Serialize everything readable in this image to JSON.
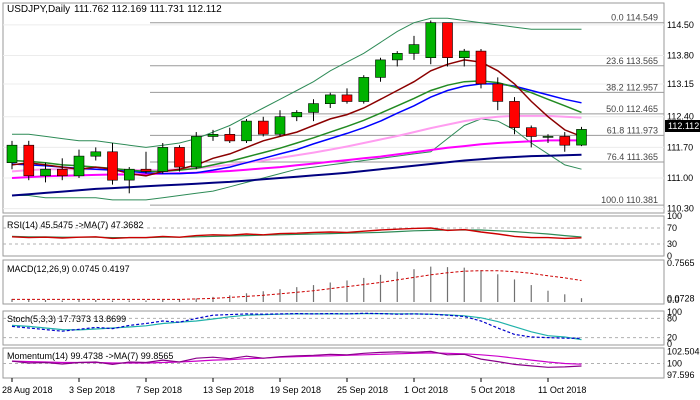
{
  "chart_data": {
    "type": "candlestick",
    "title": "USDJPY,Daily",
    "ohlc_text": "111.762 112.169 111.731 112.112",
    "x_labels": [
      "28 Aug 2018",
      "3 Sep 2018",
      "7 Sep 2018",
      "13 Sep 2018",
      "19 Sep 2018",
      "25 Sep 2018",
      "1 Oct 2018",
      "5 Oct 2018",
      "11 Oct 2018"
    ],
    "x_label_index": [
      0,
      4,
      8,
      12,
      16,
      20,
      24,
      28,
      32
    ],
    "main": {
      "ylim": [
        110.2,
        115.0
      ],
      "y_ticks": [
        "114.50",
        "113.80",
        "113.15",
        "112.40",
        "111.70",
        "111.00",
        "110.30"
      ],
      "current_price": "112.112",
      "candles": [
        {
          "o": 111.35,
          "h": 111.85,
          "l": 111.2,
          "c": 111.75
        },
        {
          "o": 111.75,
          "h": 111.85,
          "l": 110.95,
          "c": 111.05
        },
        {
          "o": 111.05,
          "h": 111.35,
          "l": 110.9,
          "c": 111.2
        },
        {
          "o": 111.2,
          "h": 111.45,
          "l": 110.95,
          "c": 111.05
        },
        {
          "o": 111.05,
          "h": 111.65,
          "l": 111.0,
          "c": 111.5
        },
        {
          "o": 111.5,
          "h": 111.7,
          "l": 111.4,
          "c": 111.6
        },
        {
          "o": 111.6,
          "h": 111.8,
          "l": 110.85,
          "c": 110.95
        },
        {
          "o": 110.95,
          "h": 111.25,
          "l": 110.65,
          "c": 111.2
        },
        {
          "o": 111.2,
          "h": 111.6,
          "l": 111.1,
          "c": 111.15
        },
        {
          "o": 111.15,
          "h": 111.8,
          "l": 111.1,
          "c": 111.7
        },
        {
          "o": 111.7,
          "h": 111.75,
          "l": 111.15,
          "c": 111.25
        },
        {
          "o": 111.25,
          "h": 112.05,
          "l": 111.2,
          "c": 111.95
        },
        {
          "o": 111.95,
          "h": 112.1,
          "l": 111.85,
          "c": 112.0
        },
        {
          "o": 112.0,
          "h": 112.15,
          "l": 111.8,
          "c": 111.85
        },
        {
          "o": 111.85,
          "h": 112.35,
          "l": 111.8,
          "c": 112.3
        },
        {
          "o": 112.3,
          "h": 112.4,
          "l": 111.95,
          "c": 112.0
        },
        {
          "o": 112.0,
          "h": 112.55,
          "l": 111.95,
          "c": 112.4
        },
        {
          "o": 112.4,
          "h": 112.55,
          "l": 112.3,
          "c": 112.5
        },
        {
          "o": 112.5,
          "h": 112.8,
          "l": 112.3,
          "c": 112.7
        },
        {
          "o": 112.7,
          "h": 112.95,
          "l": 112.6,
          "c": 112.9
        },
        {
          "o": 112.9,
          "h": 113.05,
          "l": 112.7,
          "c": 112.75
        },
        {
          "o": 112.75,
          "h": 113.35,
          "l": 112.7,
          "c": 113.3
        },
        {
          "o": 113.3,
          "h": 113.75,
          "l": 113.2,
          "c": 113.7
        },
        {
          "o": 113.7,
          "h": 113.9,
          "l": 113.55,
          "c": 113.85
        },
        {
          "o": 113.85,
          "h": 114.25,
          "l": 113.7,
          "c": 114.05
        },
        {
          "o": 113.75,
          "h": 114.6,
          "l": 113.6,
          "c": 114.55
        },
        {
          "o": 114.55,
          "h": 114.55,
          "l": 113.55,
          "c": 113.75
        },
        {
          "o": 113.75,
          "h": 113.95,
          "l": 113.55,
          "c": 113.9
        },
        {
          "o": 113.9,
          "h": 113.95,
          "l": 113.05,
          "c": 113.15
        },
        {
          "o": 113.15,
          "h": 113.3,
          "l": 112.55,
          "c": 112.75
        },
        {
          "o": 112.75,
          "h": 112.85,
          "l": 112.0,
          "c": 112.15
        },
        {
          "o": 112.15,
          "h": 112.2,
          "l": 111.7,
          "c": 111.95
        },
        {
          "o": 111.95,
          "h": 112.0,
          "l": 111.8,
          "c": 111.95
        },
        {
          "o": 111.95,
          "h": 112.05,
          "l": 111.6,
          "c": 111.75
        },
        {
          "o": 111.75,
          "h": 112.17,
          "l": 111.73,
          "c": 112.11
        }
      ],
      "fib_levels": [
        {
          "label": "0.0 114.549",
          "price": 114.549
        },
        {
          "label": "23.6 113.565",
          "price": 113.565
        },
        {
          "label": "38.2 112.957",
          "price": 112.957
        },
        {
          "label": "50.0 112.465",
          "price": 112.465
        },
        {
          "label": "61.8 111.973",
          "price": 111.973
        },
        {
          "label": "76.4 111.365",
          "price": 111.365
        },
        {
          "label": "100.0 110.381",
          "price": 110.381
        }
      ],
      "moving_averages": [
        {
          "color": "#8b0000",
          "values": [
            111.3,
            111.35,
            111.3,
            111.25,
            111.2,
            111.25,
            111.2,
            111.1,
            111.05,
            111.15,
            111.2,
            111.3,
            111.45,
            111.55,
            111.7,
            111.85,
            111.95,
            112.05,
            112.2,
            112.35,
            112.45,
            112.6,
            112.8,
            113.0,
            113.2,
            113.45,
            113.6,
            113.7,
            113.65,
            113.45,
            113.15,
            112.75,
            112.4,
            112.1,
            111.95
          ]
        },
        {
          "color": "#228b22",
          "values": [
            111.4,
            111.38,
            111.35,
            111.3,
            111.28,
            111.25,
            111.22,
            111.18,
            111.15,
            111.15,
            111.18,
            111.22,
            111.3,
            111.38,
            111.48,
            111.58,
            111.68,
            111.8,
            111.92,
            112.05,
            112.18,
            112.32,
            112.48,
            112.65,
            112.82,
            113.0,
            113.12,
            113.2,
            113.22,
            113.18,
            113.08,
            112.95,
            112.8,
            112.65,
            112.5
          ]
        },
        {
          "color": "#0000ff",
          "values": [
            111.32,
            111.3,
            111.28,
            111.25,
            111.22,
            111.2,
            111.18,
            111.15,
            111.12,
            111.1,
            111.1,
            111.12,
            111.18,
            111.25,
            111.35,
            111.45,
            111.55,
            111.65,
            111.78,
            111.9,
            112.02,
            112.15,
            112.3,
            112.48,
            112.65,
            112.85,
            113.0,
            113.1,
            113.15,
            113.15,
            113.1,
            113.0,
            112.9,
            112.8,
            112.72
          ]
        },
        {
          "color": "#ff9df0",
          "values": [
            111.15,
            111.18,
            111.2,
            111.2,
            111.2,
            111.2,
            111.2,
            111.18,
            111.18,
            111.18,
            111.2,
            111.22,
            111.26,
            111.3,
            111.35,
            111.4,
            111.46,
            111.52,
            111.58,
            111.65,
            111.72,
            111.8,
            111.88,
            111.96,
            112.05,
            112.14,
            112.22,
            112.3,
            112.36,
            112.4,
            112.42,
            112.42,
            112.42,
            112.4,
            112.38
          ]
        },
        {
          "color": "#ff00ff",
          "values": [
            111.0,
            111.02,
            111.04,
            111.05,
            111.06,
            111.07,
            111.08,
            111.08,
            111.09,
            111.1,
            111.11,
            111.12,
            111.14,
            111.16,
            111.19,
            111.22,
            111.25,
            111.29,
            111.33,
            111.37,
            111.41,
            111.45,
            111.49,
            111.54,
            111.59,
            111.64,
            111.69,
            111.73,
            111.77,
            111.8,
            111.82,
            111.84,
            111.86,
            111.86,
            111.86
          ]
        },
        {
          "color": "#000080",
          "values": [
            110.6,
            110.63,
            110.66,
            110.69,
            110.72,
            110.75,
            110.77,
            110.79,
            110.81,
            110.83,
            110.85,
            110.87,
            110.89,
            110.91,
            110.94,
            110.97,
            111.0,
            111.03,
            111.06,
            111.09,
            111.12,
            111.16,
            111.2,
            111.24,
            111.28,
            111.32,
            111.36,
            111.4,
            111.43,
            111.46,
            111.48,
            111.5,
            111.51,
            111.52,
            111.53
          ]
        }
      ],
      "bollinger": {
        "color": "#2e8b57",
        "upper": [
          112.0,
          112.0,
          111.95,
          111.9,
          111.85,
          111.85,
          111.8,
          111.75,
          111.7,
          111.75,
          111.8,
          111.9,
          112.05,
          112.2,
          112.4,
          112.6,
          112.8,
          113.0,
          113.2,
          113.45,
          113.65,
          113.85,
          114.1,
          114.35,
          114.55,
          114.65,
          114.65,
          114.6,
          114.55,
          114.5,
          114.45,
          114.4,
          114.4,
          114.4,
          114.4
        ],
        "lower": [
          110.6,
          110.6,
          110.55,
          110.55,
          110.55,
          110.55,
          110.5,
          110.5,
          110.5,
          110.55,
          110.6,
          110.65,
          110.7,
          110.8,
          110.9,
          111.0,
          111.1,
          111.2,
          111.25,
          111.3,
          111.35,
          111.4,
          111.45,
          111.5,
          111.55,
          111.6,
          111.9,
          112.2,
          112.35,
          112.3,
          112.1,
          111.8,
          111.55,
          111.3,
          111.2
        ]
      }
    },
    "rsi": {
      "label": "RSI(14) 45.5475  ->MA(7) 47.3682",
      "ylim": [
        0,
        100
      ],
      "y_ticks": [
        "100",
        "70",
        "30",
        "0"
      ],
      "tick_values": [
        100,
        70,
        30,
        0
      ],
      "rsi": [
        48,
        46,
        47,
        45,
        47,
        48,
        44,
        46,
        46,
        49,
        47,
        51,
        53,
        52,
        55,
        53,
        56,
        57,
        59,
        60,
        59,
        62,
        65,
        67,
        69,
        70,
        64,
        66,
        60,
        55,
        49,
        46,
        46,
        44,
        45.5
      ],
      "ma": [
        49,
        48,
        48,
        47,
        47,
        47,
        46,
        46,
        46,
        47,
        47,
        48,
        49,
        50,
        51,
        52,
        53,
        54,
        55,
        56,
        57,
        58,
        59,
        61,
        63,
        64,
        65,
        65,
        65,
        63,
        61,
        58,
        55,
        51,
        47.4
      ]
    },
    "macd": {
      "label": "MACD(12,26,9) 0.0745 0.4197",
      "ylim": [
        0,
        0.78
      ],
      "y_ticks": [
        "0.7565",
        "0.0728"
      ],
      "y_tick_alt": "0.0",
      "tick_values": [
        0.7565,
        0.0728
      ],
      "hist": [
        0.06,
        0.05,
        0.04,
        0.03,
        0.04,
        0.04,
        0.03,
        0.03,
        0.03,
        0.04,
        0.05,
        0.07,
        0.1,
        0.13,
        0.17,
        0.21,
        0.25,
        0.29,
        0.33,
        0.38,
        0.42,
        0.47,
        0.53,
        0.59,
        0.64,
        0.69,
        0.68,
        0.67,
        0.62,
        0.54,
        0.44,
        0.33,
        0.22,
        0.15,
        0.0745
      ],
      "signal": [
        0.05,
        0.05,
        0.05,
        0.05,
        0.05,
        0.05,
        0.05,
        0.05,
        0.05,
        0.05,
        0.05,
        0.06,
        0.07,
        0.09,
        0.11,
        0.13,
        0.16,
        0.19,
        0.22,
        0.26,
        0.3,
        0.34,
        0.38,
        0.43,
        0.48,
        0.53,
        0.57,
        0.6,
        0.61,
        0.61,
        0.59,
        0.56,
        0.51,
        0.47,
        0.42
      ]
    },
    "stoch": {
      "label": "Stoch(5,3,3) 17.7373 13.8699",
      "ylim": [
        0,
        100
      ],
      "y_ticks": [
        "100",
        "80",
        "20",
        "0"
      ],
      "tick_values": [
        100,
        80,
        20,
        0
      ],
      "k": [
        55,
        50,
        45,
        40,
        46,
        52,
        48,
        58,
        64,
        72,
        68,
        80,
        90,
        92,
        94,
        93,
        94,
        95,
        94,
        95,
        94,
        96,
        95,
        93,
        94,
        93,
        90,
        86,
        72,
        50,
        30,
        22,
        20,
        18,
        17.7
      ],
      "d": [
        58,
        55,
        50,
        45,
        44,
        47,
        50,
        53,
        57,
        64,
        68,
        72,
        78,
        85,
        90,
        92,
        93,
        94,
        94,
        94,
        94,
        95,
        95,
        94,
        94,
        93,
        91,
        88,
        82,
        70,
        54,
        38,
        26,
        22,
        13.9
      ]
    },
    "momentum": {
      "label": "Momentum(14) 99.4738  ->MA(7) 99.8565",
      "ylim": [
        97.2,
        103.0
      ],
      "y_ticks": [
        "102.504",
        "100",
        "97.596"
      ],
      "tick_values": [
        102.504,
        100.0,
        97.596
      ],
      "mom": [
        100.5,
        100.1,
        100.2,
        99.9,
        100.2,
        100.3,
        99.8,
        100.3,
        100.2,
        100.7,
        100.3,
        101.1,
        101.3,
        101.0,
        101.5,
        101.1,
        101.4,
        101.6,
        101.7,
        101.9,
        101.8,
        102.1,
        102.3,
        102.4,
        102.3,
        102.5,
        101.8,
        101.9,
        100.9,
        100.4,
        99.8,
        99.5,
        99.2,
        99.3,
        99.47
      ],
      "ma": [
        100.5,
        100.4,
        100.3,
        100.2,
        100.2,
        100.2,
        100.1,
        100.1,
        100.1,
        100.2,
        100.3,
        100.5,
        100.7,
        100.8,
        101.0,
        101.1,
        101.3,
        101.4,
        101.5,
        101.6,
        101.7,
        101.8,
        101.9,
        102.0,
        102.1,
        102.2,
        102.1,
        102.0,
        101.8,
        101.5,
        101.1,
        100.7,
        100.3,
        100.0,
        99.86
      ]
    }
  }
}
